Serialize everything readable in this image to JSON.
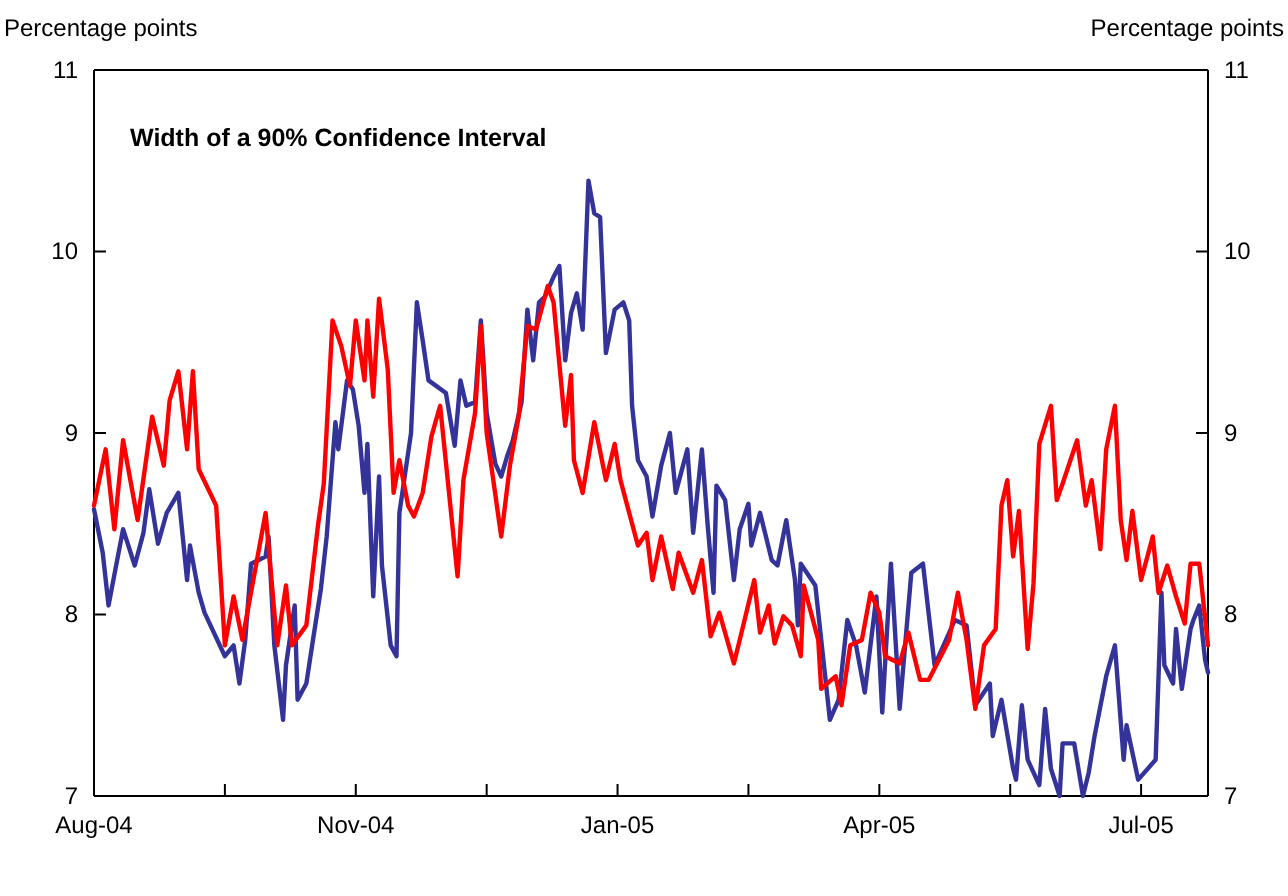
{
  "chart_data": {
    "type": "line",
    "title": "Width of a 90% Confidence Interval",
    "ylabel": "Percentage points",
    "y2label": "Percentage points",
    "xlim": [
      "2004-08-03",
      "2005-08-21"
    ],
    "xticks": [
      {
        "value": "2004-08-03",
        "label": "Aug-04"
      },
      {
        "value": "2004-09-17",
        "label": null
      },
      {
        "value": "2004-11-01",
        "label": "Nov-04"
      },
      {
        "value": "2004-12-16",
        "label": null
      },
      {
        "value": "2005-01-30",
        "label": "Jan-05"
      },
      {
        "value": "2005-03-16",
        "label": null
      },
      {
        "value": "2005-04-30",
        "label": "Apr-05"
      },
      {
        "value": "2005-06-14",
        "label": null
      },
      {
        "value": "2005-07-29",
        "label": "Jul-05"
      }
    ],
    "ylim": [
      7,
      11
    ],
    "yticks": [
      7,
      8,
      9,
      10,
      11
    ],
    "y2lim": [
      7,
      11
    ],
    "y2ticks": [
      7,
      8,
      9,
      10,
      11
    ],
    "line_style": "solid",
    "marker": "none",
    "series": [
      {
        "color": "#333399",
        "x": [
          "2004-08-03",
          "2004-08-06",
          "2004-08-08",
          "2004-08-13",
          "2004-08-17",
          "2004-08-20",
          "2004-08-22",
          "2004-08-25",
          "2004-08-28",
          "2004-09-01",
          "2004-09-04",
          "2004-09-05",
          "2004-09-08",
          "2004-09-10",
          "2004-09-17",
          "2004-09-20",
          "2004-09-22",
          "2004-09-24",
          "2004-09-26",
          "2004-10-01",
          "2004-10-02",
          "2004-10-04",
          "2004-10-07",
          "2004-10-08",
          "2004-10-11",
          "2004-10-12",
          "2004-10-15",
          "2004-10-17",
          "2004-10-20",
          "2004-10-22",
          "2004-10-25",
          "2004-10-26",
          "2004-10-29",
          "2004-10-31",
          "2004-11-02",
          "2004-11-04",
          "2004-11-05",
          "2004-11-07",
          "2004-11-09",
          "2004-11-10",
          "2004-11-13",
          "2004-11-15",
          "2004-11-16",
          "2004-11-20",
          "2004-11-22",
          "2004-11-24",
          "2004-11-26",
          "2004-12-02",
          "2004-12-05",
          "2004-12-07",
          "2004-12-09",
          "2004-12-12",
          "2004-12-14",
          "2004-12-16",
          "2004-12-19",
          "2004-12-21",
          "2004-12-23",
          "2004-12-25",
          "2004-12-28",
          "2004-12-30",
          "2005-01-01",
          "2005-01-03",
          "2005-01-05",
          "2005-01-08",
          "2005-01-10",
          "2005-01-12",
          "2005-01-14",
          "2005-01-16",
          "2005-01-18",
          "2005-01-20",
          "2005-01-22",
          "2005-01-24",
          "2005-01-26",
          "2005-01-29",
          "2005-02-01",
          "2005-02-03",
          "2005-02-04",
          "2005-02-06",
          "2005-02-09",
          "2005-02-11",
          "2005-02-14",
          "2005-02-17",
          "2005-02-19",
          "2005-02-23",
          "2005-02-25",
          "2005-02-28",
          "2005-03-02",
          "2005-03-04",
          "2005-03-05",
          "2005-03-08",
          "2005-03-11",
          "2005-03-13",
          "2005-03-16",
          "2005-03-17",
          "2005-03-20",
          "2005-03-24",
          "2005-03-26",
          "2005-03-29",
          "2005-04-01",
          "2005-04-02",
          "2005-04-03",
          "2005-04-08",
          "2005-04-13",
          "2005-04-16",
          "2005-04-19",
          "2005-04-22",
          "2005-04-25",
          "2005-04-29",
          "2005-05-01",
          "2005-05-04",
          "2005-05-07",
          "2005-05-11",
          "2005-05-15",
          "2005-05-19",
          "2005-05-26",
          "2005-05-30",
          "2005-06-02",
          "2005-06-07",
          "2005-06-08",
          "2005-06-11",
          "2005-06-15",
          "2005-06-16",
          "2005-06-18",
          "2005-06-20",
          "2005-06-24",
          "2005-06-26",
          "2005-06-28",
          "2005-07-01",
          "2005-07-02",
          "2005-07-06",
          "2005-07-09",
          "2005-07-11",
          "2005-07-13",
          "2005-07-17",
          "2005-07-20",
          "2005-07-23",
          "2005-07-24",
          "2005-07-28",
          "2005-08-03",
          "2005-08-05",
          "2005-08-06",
          "2005-08-09",
          "2005-08-10",
          "2005-08-12",
          "2005-08-15",
          "2005-08-16",
          "2005-08-18",
          "2005-08-20",
          "2005-08-21"
        ],
        "values": [
          8.58,
          8.34,
          8.05,
          8.47,
          8.27,
          8.45,
          8.69,
          8.39,
          8.56,
          8.67,
          8.19,
          8.38,
          8.12,
          8.01,
          7.77,
          7.83,
          7.62,
          7.86,
          8.28,
          8.32,
          8.43,
          7.83,
          7.42,
          7.72,
          8.05,
          7.53,
          7.62,
          7.83,
          8.14,
          8.43,
          9.06,
          8.91,
          9.29,
          9.24,
          9.04,
          8.67,
          8.94,
          8.1,
          8.76,
          8.27,
          7.83,
          7.77,
          8.56,
          9.0,
          9.72,
          9.51,
          9.29,
          9.22,
          8.93,
          9.29,
          9.15,
          9.17,
          9.62,
          9.11,
          8.83,
          8.76,
          8.87,
          8.96,
          9.17,
          9.68,
          9.4,
          9.72,
          9.75,
          9.86,
          9.92,
          9.4,
          9.66,
          9.77,
          9.57,
          10.39,
          10.21,
          10.19,
          9.44,
          9.68,
          9.72,
          9.62,
          9.15,
          8.85,
          8.76,
          8.54,
          8.82,
          9.0,
          8.67,
          8.91,
          8.45,
          8.91,
          8.49,
          8.12,
          8.71,
          8.63,
          8.19,
          8.47,
          8.61,
          8.38,
          8.56,
          8.3,
          8.27,
          8.52,
          8.19,
          7.94,
          8.28,
          8.16,
          7.42,
          7.53,
          7.97,
          7.83,
          7.57,
          8.1,
          7.46,
          8.28,
          7.48,
          8.23,
          8.28,
          7.72,
          7.97,
          7.94,
          7.5,
          7.62,
          7.33,
          7.53,
          7.15,
          7.09,
          7.5,
          7.2,
          7.06,
          7.48,
          7.15,
          7.0,
          7.29,
          7.29,
          7.0,
          7.13,
          7.33,
          7.66,
          7.83,
          7.2,
          7.39,
          7.09,
          7.2,
          8.12,
          7.72,
          7.62,
          7.92,
          7.59,
          7.92,
          7.97,
          8.05,
          7.75,
          7.68
        ]
      },
      {
        "color": "#ff0000",
        "x": [
          "2004-08-03",
          "2004-08-07",
          "2004-08-10",
          "2004-08-13",
          "2004-08-18",
          "2004-08-23",
          "2004-08-27",
          "2004-08-29",
          "2004-09-01",
          "2004-09-04",
          "2004-09-06",
          "2004-09-08",
          "2004-09-14",
          "2004-09-17",
          "2004-09-20",
          "2004-09-23",
          "2004-10-01",
          "2004-10-05",
          "2004-10-08",
          "2004-10-10",
          "2004-10-15",
          "2004-10-19",
          "2004-10-21",
          "2004-10-24",
          "2004-10-27",
          "2004-10-30",
          "2004-11-01",
          "2004-11-04",
          "2004-11-05",
          "2004-11-07",
          "2004-11-09",
          "2004-11-12",
          "2004-11-14",
          "2004-11-16",
          "2004-11-19",
          "2004-11-21",
          "2004-11-24",
          "2004-11-27",
          "2004-11-30",
          "2004-12-06",
          "2004-12-08",
          "2004-12-12",
          "2004-12-14",
          "2004-12-16",
          "2004-12-21",
          "2004-12-24",
          "2004-12-27",
          "2004-12-30",
          "2005-01-02",
          "2005-01-06",
          "2005-01-08",
          "2005-01-12",
          "2005-01-14",
          "2005-01-15",
          "2005-01-18",
          "2005-01-22",
          "2005-01-26",
          "2005-01-29",
          "2005-01-31",
          "2005-02-06",
          "2005-02-09",
          "2005-02-11",
          "2005-02-14",
          "2005-02-18",
          "2005-02-20",
          "2005-02-25",
          "2005-02-28",
          "2005-03-03",
          "2005-03-06",
          "2005-03-11",
          "2005-03-13",
          "2005-03-18",
          "2005-03-20",
          "2005-03-23",
          "2005-03-25",
          "2005-03-28",
          "2005-03-31",
          "2005-04-03",
          "2005-04-04",
          "2005-04-09",
          "2005-04-10",
          "2005-04-15",
          "2005-04-17",
          "2005-04-20",
          "2005-04-24",
          "2005-04-27",
          "2005-04-30",
          "2005-05-02",
          "2005-05-07",
          "2005-05-10",
          "2005-05-14",
          "2005-05-17",
          "2005-05-24",
          "2005-05-27",
          "2005-05-30",
          "2005-06-02",
          "2005-06-05",
          "2005-06-09",
          "2005-06-11",
          "2005-06-13",
          "2005-06-15",
          "2005-06-17",
          "2005-06-20",
          "2005-06-22",
          "2005-06-24",
          "2005-06-28",
          "2005-06-30",
          "2005-07-02",
          "2005-07-07",
          "2005-07-10",
          "2005-07-12",
          "2005-07-15",
          "2005-07-17",
          "2005-07-20",
          "2005-07-22",
          "2005-07-24",
          "2005-07-26",
          "2005-07-29",
          "2005-08-02",
          "2005-08-04",
          "2005-08-07",
          "2005-08-10",
          "2005-08-13",
          "2005-08-15",
          "2005-08-18",
          "2005-08-21"
        ],
        "values": [
          8.6,
          8.91,
          8.47,
          8.96,
          8.52,
          9.09,
          8.82,
          9.18,
          9.34,
          8.91,
          9.34,
          8.8,
          8.6,
          7.83,
          8.1,
          7.86,
          8.56,
          7.83,
          8.16,
          7.83,
          7.94,
          8.49,
          8.72,
          9.62,
          9.48,
          9.26,
          9.62,
          9.29,
          9.62,
          9.2,
          9.74,
          9.35,
          8.67,
          8.85,
          8.6,
          8.54,
          8.67,
          8.98,
          9.15,
          8.21,
          8.74,
          9.11,
          9.59,
          9.0,
          8.43,
          8.82,
          9.09,
          9.59,
          9.57,
          9.81,
          9.72,
          9.04,
          9.32,
          8.85,
          8.67,
          9.06,
          8.74,
          8.94,
          8.74,
          8.38,
          8.45,
          8.19,
          8.43,
          8.14,
          8.34,
          8.12,
          8.3,
          7.88,
          8.01,
          7.73,
          7.86,
          8.19,
          7.9,
          8.05,
          7.84,
          7.99,
          7.94,
          7.77,
          8.16,
          7.86,
          7.59,
          7.66,
          7.5,
          7.83,
          7.86,
          8.12,
          8.01,
          7.77,
          7.73,
          7.9,
          7.64,
          7.64,
          7.86,
          8.12,
          7.86,
          7.48,
          7.83,
          7.92,
          8.6,
          8.74,
          8.32,
          8.57,
          7.81,
          8.17,
          8.94,
          9.15,
          8.63,
          8.72,
          8.96,
          8.6,
          8.74,
          8.36,
          8.91,
          9.15,
          8.52,
          8.3,
          8.57,
          8.19,
          8.43,
          8.12,
          8.27,
          8.1,
          7.95,
          8.28,
          8.28,
          7.83
        ]
      }
    ]
  }
}
